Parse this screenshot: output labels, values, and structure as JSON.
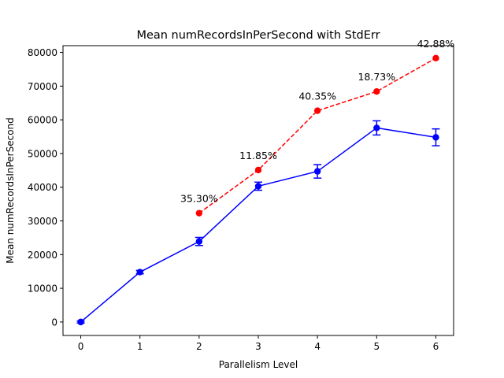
{
  "chart_data": {
    "type": "line",
    "title": "Mean numRecordsInPerSecond with StdErr",
    "xlabel": "Parallelism Level",
    "ylabel": "Mean numRecordsInPerSecond",
    "xlim": [
      -0.3,
      6.3
    ],
    "ylim": [
      -4000,
      82000
    ],
    "x_ticks": [
      0,
      1,
      2,
      3,
      4,
      5,
      6
    ],
    "y_ticks": [
      0,
      10000,
      20000,
      30000,
      40000,
      50000,
      60000,
      70000,
      80000
    ],
    "grid": false,
    "series": [
      {
        "color": "#0000ff",
        "line_style": "solid",
        "marker": "circle",
        "x": [
          0,
          1,
          2,
          3,
          4,
          5,
          6
        ],
        "y": [
          0,
          14800,
          23900,
          40300,
          44700,
          57600,
          54800
        ],
        "stderr": [
          300,
          500,
          1200,
          1200,
          2000,
          2100,
          2500
        ]
      },
      {
        "color": "#ff0000",
        "line_style": "dashed",
        "marker": "circle",
        "x": [
          2,
          3,
          4,
          5,
          6
        ],
        "y": [
          32300,
          45100,
          62700,
          68400,
          78300
        ]
      }
    ],
    "annotations": [
      {
        "x": 2,
        "y": 32300,
        "text": "35.30%"
      },
      {
        "x": 3,
        "y": 45100,
        "text": "11.85%"
      },
      {
        "x": 4,
        "y": 62700,
        "text": "40.35%"
      },
      {
        "x": 5,
        "y": 68400,
        "text": "18.73%"
      },
      {
        "x": 6,
        "y": 78300,
        "text": "42.88%"
      }
    ]
  }
}
